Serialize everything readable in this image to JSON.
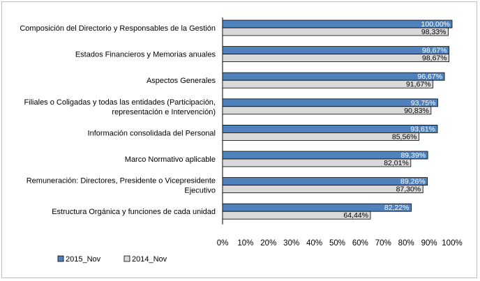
{
  "chart_data": {
    "type": "bar",
    "orientation": "horizontal",
    "categories": [
      [
        "Composición del Directorio y Responsables de la Gestión"
      ],
      [
        "Estados Financieros y Memorias anuales"
      ],
      [
        "Aspectos Generales"
      ],
      [
        "Filiales o Coligadas y todas las entidades (Participación,",
        "representación e Intervención)"
      ],
      [
        "Información consolidada del Personal"
      ],
      [
        "Marco Normativo aplicable"
      ],
      [
        "Remuneración: Directores, Presidente o Vicepresidente",
        "Ejecutivo"
      ],
      [
        "Estructura Orgánica y funciones de cada unidad"
      ]
    ],
    "series": [
      {
        "name": "2015_Nov",
        "color": "#4f81bd",
        "values": [
          100.0,
          98.67,
          96.67,
          93.75,
          93.61,
          89.39,
          89.26,
          82.22
        ],
        "labels": [
          "100,00%",
          "98,67%",
          "96,67%",
          "93,75%",
          "93,61%",
          "89,39%",
          "89,26%",
          "82,22%"
        ]
      },
      {
        "name": "2014_Nov",
        "color": "#d9d9d9",
        "values": [
          98.33,
          98.67,
          91.67,
          90.83,
          85.56,
          82.01,
          87.3,
          64.44
        ],
        "labels": [
          "98,33%",
          "98,67%",
          "91,67%",
          "90,83%",
          "85,56%",
          "82,01%",
          "87,30%",
          "64,44%"
        ]
      }
    ],
    "xlim": [
      0,
      100
    ],
    "xticks": [
      "0%",
      "10%",
      "20%",
      "30%",
      "40%",
      "50%",
      "60%",
      "70%",
      "80%",
      "90%",
      "100%"
    ],
    "grid": false,
    "legend_position": "bottom-left"
  }
}
